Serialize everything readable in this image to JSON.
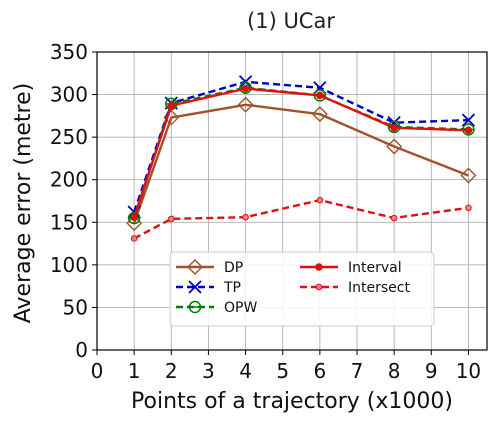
{
  "chart_data": {
    "type": "line",
    "title": "(1) UCar",
    "xlabel": "Points of a trajectory (x1000)",
    "ylabel": "Average error (metre)",
    "xlim": [
      0,
      10.5
    ],
    "ylim": [
      0,
      350
    ],
    "xticks": [
      0,
      1,
      2,
      3,
      4,
      5,
      6,
      7,
      8,
      9,
      10
    ],
    "yticks": [
      0,
      50,
      100,
      150,
      200,
      250,
      300,
      350
    ],
    "grid": true,
    "legend_position": "lower-center",
    "x": [
      1,
      2,
      4,
      6,
      8,
      10
    ],
    "series": [
      {
        "name": "DP",
        "values": [
          149,
          273,
          288,
          277,
          239,
          205
        ],
        "color": "#a0522d",
        "dash": "solid",
        "marker": "diamond-open"
      },
      {
        "name": "TP",
        "values": [
          162,
          290,
          315,
          308,
          267,
          270
        ],
        "color": "#0000cc",
        "dash": "dashed",
        "marker": "x"
      },
      {
        "name": "OPW",
        "values": [
          155,
          289,
          308,
          299,
          262,
          259
        ],
        "color": "#008000",
        "dash": "dashed",
        "marker": "circle-open-crossed"
      },
      {
        "name": "Interval",
        "values": [
          156,
          287,
          307,
          299,
          261,
          258
        ],
        "color": "#dd1111",
        "dash": "solid",
        "marker": "dot"
      },
      {
        "name": "Intersect",
        "values": [
          131,
          154,
          156,
          176,
          155,
          167
        ],
        "color": "#dd1111",
        "dash": "dashed",
        "marker": "dot-small"
      }
    ]
  }
}
